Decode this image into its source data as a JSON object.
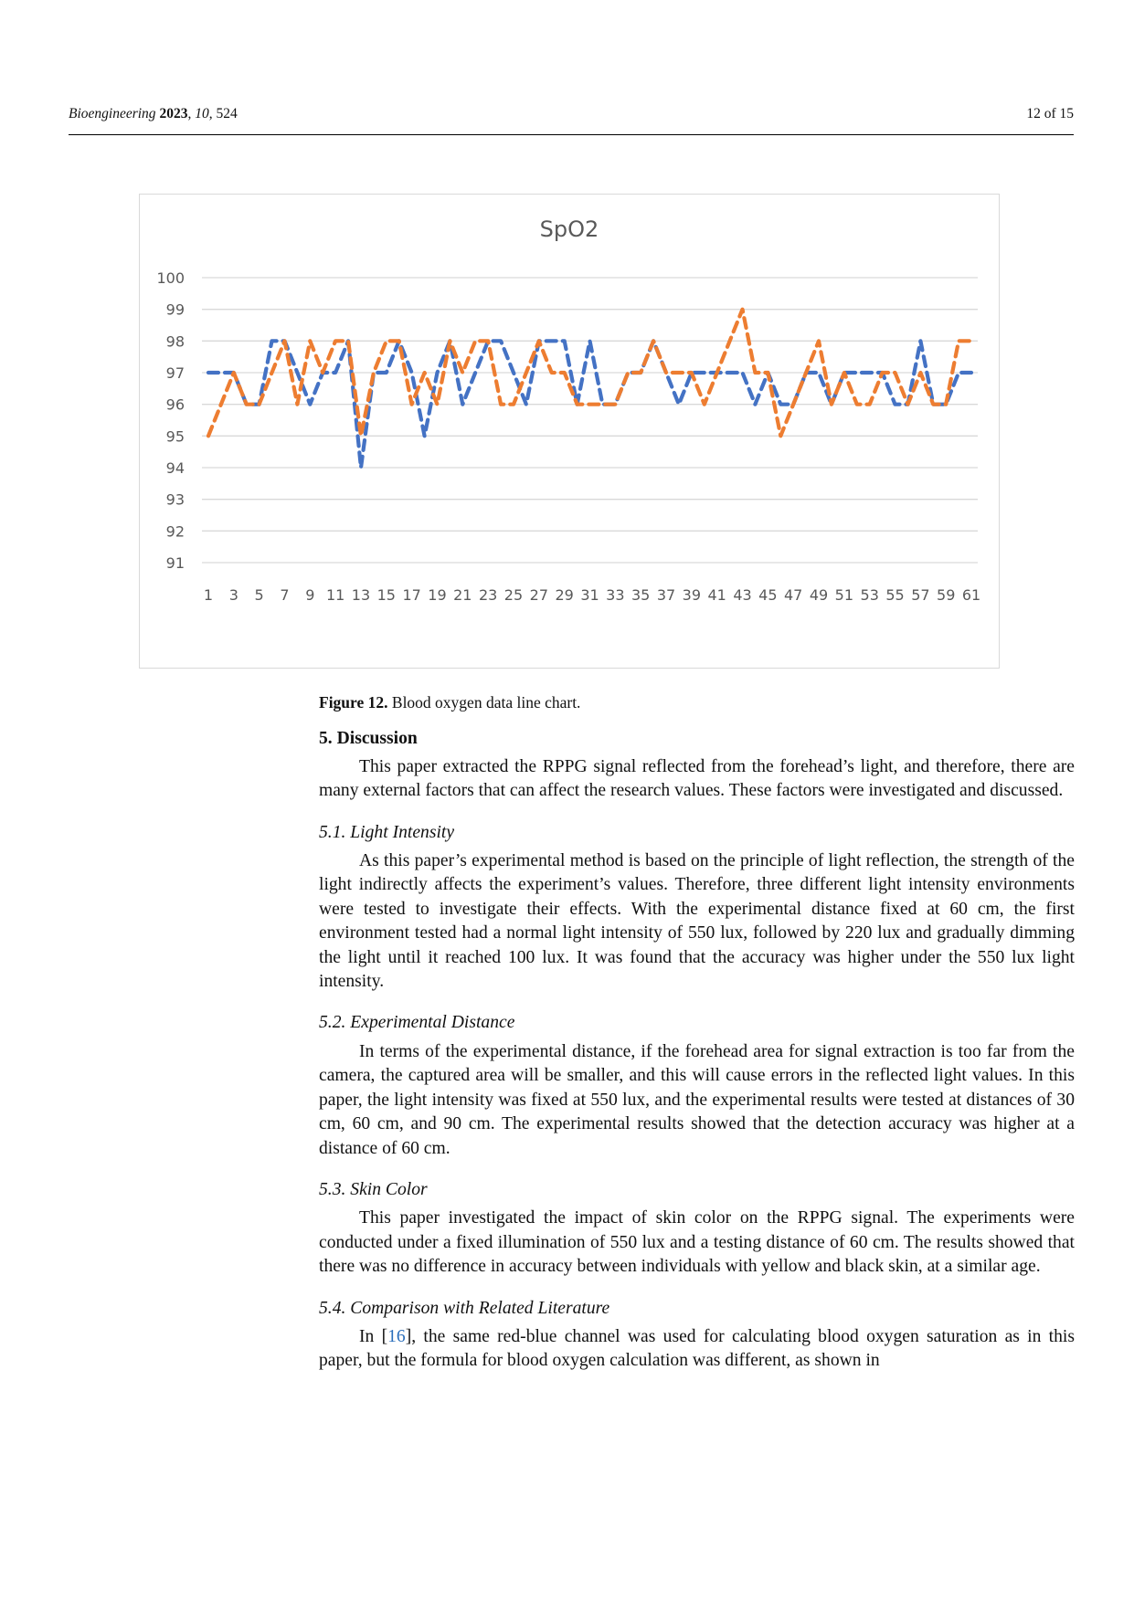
{
  "header": {
    "journal": "Bioengineering",
    "year": "2023",
    "volume": "10",
    "article": "524",
    "page": "12 of 15"
  },
  "chart_data": {
    "type": "line",
    "title": "SpO2",
    "xlabel": "",
    "ylabel": "",
    "x": [
      1,
      2,
      3,
      4,
      5,
      6,
      7,
      8,
      9,
      10,
      11,
      12,
      13,
      14,
      15,
      16,
      17,
      18,
      19,
      20,
      21,
      22,
      23,
      24,
      25,
      26,
      27,
      28,
      29,
      30,
      31,
      32,
      33,
      34,
      35,
      36,
      37,
      38,
      39,
      40,
      41,
      42,
      43,
      44,
      45,
      46,
      47,
      48,
      49,
      50,
      51,
      52,
      53,
      54,
      55,
      56,
      57,
      58,
      59,
      60,
      61
    ],
    "x_tick_labels": [
      "1",
      "3",
      "5",
      "7",
      "9",
      "11",
      "13",
      "15",
      "17",
      "19",
      "21",
      "23",
      "25",
      "27",
      "29",
      "31",
      "33",
      "35",
      "37",
      "39",
      "41",
      "43",
      "45",
      "47",
      "49",
      "51",
      "53",
      "55",
      "57",
      "59",
      "61"
    ],
    "ylim": [
      91,
      100
    ],
    "y_ticks": [
      100,
      99,
      98,
      97,
      96,
      95,
      94,
      93,
      92,
      91
    ],
    "grid": true,
    "legend": "none",
    "series": [
      {
        "color": "#4472C4",
        "style": "dashed",
        "values": [
          97,
          97,
          97,
          96,
          96,
          98,
          98,
          97,
          96,
          97,
          97,
          98,
          94,
          97,
          97,
          98,
          97,
          95,
          97,
          98,
          96,
          97,
          98,
          98,
          97,
          96,
          98,
          98,
          98,
          96,
          98,
          96,
          96,
          97,
          97,
          98,
          97,
          96,
          97,
          97,
          97,
          97,
          97,
          96,
          97,
          96,
          96,
          97,
          97,
          96,
          97,
          97,
          97,
          97,
          96,
          96,
          98,
          96,
          96,
          97,
          97
        ]
      },
      {
        "color": "#ED7D31",
        "style": "dashed",
        "values": [
          95,
          96,
          97,
          96,
          96,
          97,
          98,
          96,
          98,
          97,
          98,
          98,
          95,
          97,
          98,
          98,
          96,
          97,
          96,
          98,
          97,
          98,
          98,
          96,
          96,
          97,
          98,
          97,
          97,
          96,
          96,
          96,
          96,
          97,
          97,
          98,
          97,
          97,
          97,
          96,
          97,
          98,
          99,
          97,
          97,
          95,
          96,
          97,
          98,
          96,
          97,
          96,
          96,
          97,
          97,
          96,
          97,
          96,
          96,
          98,
          98
        ]
      }
    ]
  },
  "caption": {
    "label": "Figure 12.",
    "text": "Blood oxygen data line chart."
  },
  "sections": {
    "discussion_title": "5. Discussion",
    "discussion_text": "This paper extracted the RPPG signal reflected from the forehead’s light, and therefore, there are many external factors that can affect the research values.  These factors were investigated and discussed.",
    "s1_title": "5.1. Light Intensity",
    "s1_text": "As this paper’s experimental method is based on the principle of light reflection, the strength of the light indirectly affects the experiment’s values. Therefore, three different light intensity environments were tested to investigate their effects. With the experimental distance fixed at 60 cm, the first environment tested had a normal light intensity of 550 lux, followed by 220 lux and gradually dimming the light until it reached 100 lux. It was found that the accuracy was higher under the 550 lux light intensity.",
    "s2_title": "5.2. Experimental Distance",
    "s2_text": "In terms of the experimental distance, if the forehead area for signal extraction is too far from the camera, the captured area will be smaller, and this will cause errors in the reflected light values.  In this paper, the light intensity was fixed at 550 lux, and the experimental results were tested at distances of 30 cm, 60 cm, and 90 cm. The experimental results showed that the detection accuracy was higher at a distance of 60 cm.",
    "s3_title": "5.3. Skin Color",
    "s3_text": "This paper investigated the impact of skin color on the RPPG signal. The experiments were conducted under a fixed illumination of 550 lux and a testing distance of 60 cm. The results showed that there was no difference in accuracy between individuals with yellow and black skin, at a similar age.",
    "s4_title": "5.4. Comparison with Related Literature",
    "s4_pre": "In [",
    "s4_ref": "16",
    "s4_text": "], the same red-blue channel was used for calculating blood oxygen saturation as in this paper, but the formula for blood oxygen calculation was different, as shown in"
  }
}
